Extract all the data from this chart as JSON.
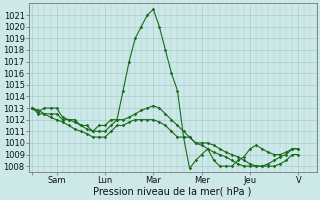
{
  "title": "",
  "xlabel": "Pression niveau de la mer( hPa )",
  "ylabel": "",
  "background_color": "#cce8e8",
  "grid_color": "#aacccc",
  "line_color": "#1a6b1a",
  "ylim": [
    1007.5,
    1022.0
  ],
  "yticks": [
    1008,
    1009,
    1010,
    1011,
    1012,
    1013,
    1014,
    1015,
    1016,
    1017,
    1018,
    1019,
    1020,
    1021
  ],
  "day_labels": [
    "",
    "Sam",
    "Lun",
    "Mar",
    "Mer",
    "Jeu",
    "V"
  ],
  "day_positions": [
    0,
    2,
    6,
    10,
    14,
    18,
    22
  ],
  "xlim": [
    -0.3,
    23.5
  ],
  "series": [
    {
      "x": [
        0,
        0.5,
        1,
        1.5,
        2,
        2.5,
        3,
        3.5,
        4,
        4.5,
        5,
        5.5,
        6,
        6.5,
        7,
        7.5,
        8,
        8.5,
        9,
        9.5,
        10,
        10.5,
        11,
        11.5,
        12,
        12.5,
        13,
        13.5,
        14,
        14.5,
        15,
        15.5,
        16,
        16.5,
        17,
        17.5,
        18,
        18.5,
        19,
        19.5,
        20,
        20.5,
        21,
        21.5,
        22
      ],
      "y": [
        1013.0,
        1012.7,
        1013.0,
        1013.0,
        1013.0,
        1012.2,
        1012.0,
        1012.0,
        1011.5,
        1011.5,
        1011.0,
        1011.5,
        1011.5,
        1012.0,
        1012.0,
        1014.5,
        1017.0,
        1019.0,
        1020.0,
        1021.0,
        1021.5,
        1020.0,
        1018.0,
        1016.0,
        1014.5,
        1010.5,
        1007.8,
        1008.5,
        1009.0,
        1009.5,
        1008.5,
        1008.0,
        1008.0,
        1008.0,
        1008.5,
        1008.8,
        1009.5,
        1009.8,
        1009.5,
        1009.2,
        1009.0,
        1009.0,
        1009.2,
        1009.5,
        1009.5
      ]
    },
    {
      "x": [
        0,
        0.5,
        1,
        1.5,
        2,
        2.5,
        3,
        3.5,
        4,
        4.5,
        5,
        5.5,
        6,
        6.5,
        7,
        7.5,
        8,
        8.5,
        9,
        9.5,
        10,
        10.5,
        11,
        11.5,
        12,
        12.5,
        13,
        13.5,
        14,
        14.5,
        15,
        15.5,
        16,
        16.5,
        17,
        17.5,
        18,
        18.5,
        19,
        19.5,
        20,
        20.5,
        21,
        21.5,
        22
      ],
      "y": [
        1013.0,
        1012.5,
        1012.5,
        1012.5,
        1012.5,
        1012.0,
        1012.0,
        1011.8,
        1011.5,
        1011.2,
        1011.0,
        1011.0,
        1011.0,
        1011.5,
        1012.0,
        1012.0,
        1012.2,
        1012.5,
        1012.8,
        1013.0,
        1013.2,
        1013.0,
        1012.5,
        1012.0,
        1011.5,
        1011.0,
        1010.5,
        1010.0,
        1010.0,
        1010.0,
        1009.8,
        1009.5,
        1009.2,
        1009.0,
        1008.8,
        1008.5,
        1008.2,
        1008.0,
        1008.0,
        1008.0,
        1008.0,
        1008.2,
        1008.5,
        1009.0,
        1009.0
      ]
    },
    {
      "x": [
        0,
        0.5,
        1,
        1.5,
        2,
        2.5,
        3,
        3.5,
        4,
        4.5,
        5,
        5.5,
        6,
        6.5,
        7,
        7.5,
        8,
        8.5,
        9,
        9.5,
        10,
        10.5,
        11,
        11.5,
        12,
        12.5,
        13,
        13.5,
        14,
        14.5,
        15,
        15.5,
        16,
        16.5,
        17,
        17.5,
        18,
        18.5,
        19,
        19.5,
        20,
        20.5,
        21,
        21.5,
        22
      ],
      "y": [
        1013.0,
        1012.8,
        1012.5,
        1012.2,
        1012.0,
        1011.8,
        1011.5,
        1011.2,
        1011.0,
        1010.8,
        1010.5,
        1010.5,
        1010.5,
        1011.0,
        1011.5,
        1011.5,
        1011.8,
        1012.0,
        1012.0,
        1012.0,
        1012.0,
        1011.8,
        1011.5,
        1011.0,
        1010.5,
        1010.5,
        1010.5,
        1010.0,
        1009.8,
        1009.5,
        1009.2,
        1009.0,
        1008.8,
        1008.5,
        1008.2,
        1008.0,
        1008.0,
        1008.0,
        1008.0,
        1008.2,
        1008.5,
        1008.8,
        1009.0,
        1009.5,
        1009.5
      ]
    }
  ]
}
